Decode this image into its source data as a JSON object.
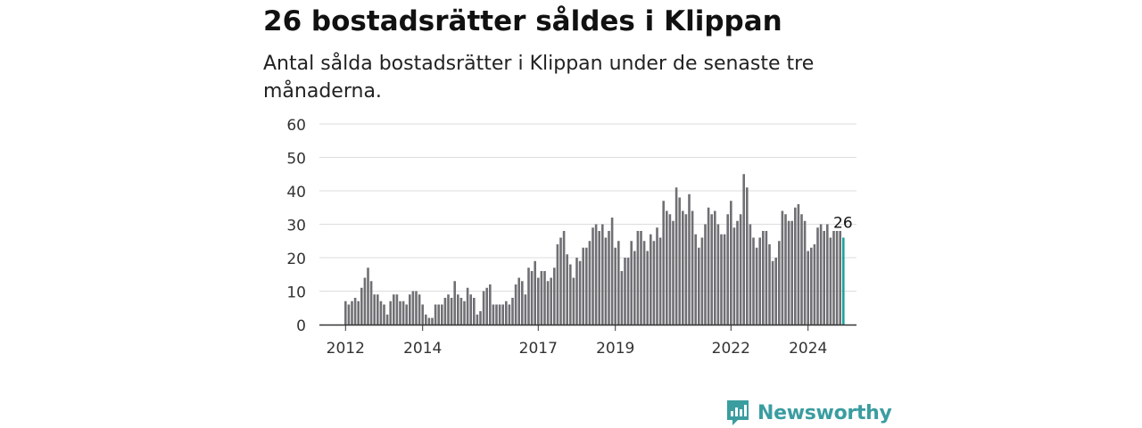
{
  "header": {
    "title": "26 bostadsrätter såldes i Klippan",
    "subtitle": "Antal sålda bostadsrätter i Klippan under de senaste tre månaderna."
  },
  "branding": {
    "name": "Newsworthy",
    "icon": "newsworthy-logo-icon",
    "color": "#3a9da0"
  },
  "colors": {
    "bar": "#707074",
    "highlight": "#1aa39d",
    "grid": "#dddddd",
    "axis": "#333333"
  },
  "chart_data": {
    "type": "bar",
    "title": "26 bostadsrätter såldes i Klippan",
    "subtitle": "Antal sålda bostadsrätter i Klippan under de senaste tre månaderna.",
    "xlabel": "",
    "ylabel": "",
    "ylim": [
      0,
      60
    ],
    "yticks": [
      0,
      10,
      20,
      30,
      40,
      50,
      60
    ],
    "xtick_labels": [
      "2012",
      "2014",
      "2017",
      "2019",
      "2022",
      "2024"
    ],
    "grid": true,
    "legend": "none",
    "highlight_label": "26",
    "series": [
      {
        "values": [
          7,
          6,
          7,
          8,
          7,
          11,
          14,
          17,
          13,
          9,
          9,
          7,
          6,
          3,
          7,
          9,
          9,
          7,
          7,
          6,
          9,
          10,
          10,
          9,
          6,
          3,
          2,
          2,
          6,
          6,
          6,
          8,
          9,
          8,
          13,
          9,
          8,
          7,
          11,
          9,
          8,
          3,
          4,
          10,
          11,
          12,
          6,
          6,
          6,
          6,
          7,
          6,
          8,
          12,
          14,
          13,
          9,
          17,
          16,
          19,
          14,
          16,
          16,
          13,
          14,
          17,
          24,
          26,
          28,
          21,
          18,
          14,
          20,
          19,
          23,
          23,
          25,
          29,
          30,
          28,
          30,
          26,
          28,
          32,
          23,
          25,
          16,
          20,
          20,
          25,
          22,
          28,
          28,
          25,
          22,
          27,
          25,
          29,
          26,
          37,
          34,
          33,
          31,
          41,
          38,
          34,
          33,
          39,
          34,
          27,
          23,
          26,
          30,
          35,
          33,
          34,
          30,
          27,
          27,
          33,
          37,
          29,
          31,
          33,
          45,
          41,
          30,
          26,
          23,
          26,
          28,
          28,
          24,
          19,
          20,
          25,
          34,
          33,
          31,
          31,
          35,
          36,
          33,
          31,
          22,
          23,
          24,
          29,
          30,
          28,
          30,
          26,
          28,
          28,
          28,
          26
        ]
      }
    ]
  }
}
